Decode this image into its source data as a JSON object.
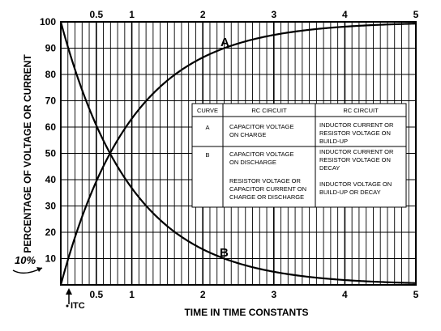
{
  "chart_data": {
    "type": "line",
    "title": "",
    "xlabel": "TIME IN TIME CONSTANTS",
    "ylabel": "PERCENTAGE OF VOLTAGE OR CURRENT",
    "xlim": [
      0,
      5
    ],
    "ylim": [
      0,
      100
    ],
    "x_ticks": [
      "0.5",
      "1",
      "2",
      "3",
      "4",
      "5"
    ],
    "x_tick_values": [
      0.5,
      1,
      2,
      3,
      4,
      5
    ],
    "y_ticks": [
      "10",
      "20",
      "30",
      "40",
      "50",
      "60",
      "70",
      "80",
      "90",
      "100"
    ],
    "y_tick_values": [
      10,
      20,
      30,
      40,
      50,
      60,
      70,
      80,
      90,
      100
    ],
    "grid": true,
    "series": [
      {
        "name": "A",
        "x": [
          0,
          0.1,
          0.2,
          0.3,
          0.5,
          0.7,
          1,
          1.5,
          2,
          2.5,
          3,
          3.5,
          4,
          4.5,
          5
        ],
        "values": [
          0,
          9.5,
          18.1,
          25.9,
          39.3,
          50.3,
          63.2,
          77.7,
          86.5,
          91.8,
          95.0,
          97.0,
          98.2,
          98.9,
          99.3
        ]
      },
      {
        "name": "B",
        "x": [
          0,
          0.1,
          0.2,
          0.3,
          0.5,
          0.7,
          1,
          1.5,
          2,
          2.5,
          3,
          3.5,
          4,
          4.5,
          5
        ],
        "values": [
          100,
          90.5,
          81.9,
          74.1,
          60.7,
          49.7,
          36.8,
          22.3,
          13.5,
          8.2,
          5.0,
          3.0,
          1.8,
          1.1,
          0.7
        ]
      }
    ],
    "annotations": {
      "ten_percent": "10%",
      "itc": "ITC"
    },
    "legend_table": {
      "headers": [
        "CURVE",
        "RC CIRCUIT",
        "RC CIRCUIT"
      ],
      "rows": [
        {
          "curve": "A",
          "rc": [
            "CAPACITOR VOLTAGE",
            "ON CHARGE"
          ],
          "rl": [
            "INDUCTOR CURRENT OR",
            "RESISTOR VOLTAGE ON",
            "BUILD-UP"
          ]
        },
        {
          "curve": "B",
          "rc": [
            "CAPACITOR VOLTAGE",
            "ON DISCHARGE",
            "",
            "RESISTOR VOLTAGE OR",
            "CAPACITOR CURRENT ON",
            "CHARGE OR DISCHARGE"
          ],
          "rl": [
            "INDUCTOR CURRENT OR",
            "RESISTOR VOLTAGE ON",
            "DECAY",
            "",
            "INDUCTOR VOLTAGE ON",
            "BUILD-UP OR DECAY"
          ]
        }
      ]
    }
  }
}
